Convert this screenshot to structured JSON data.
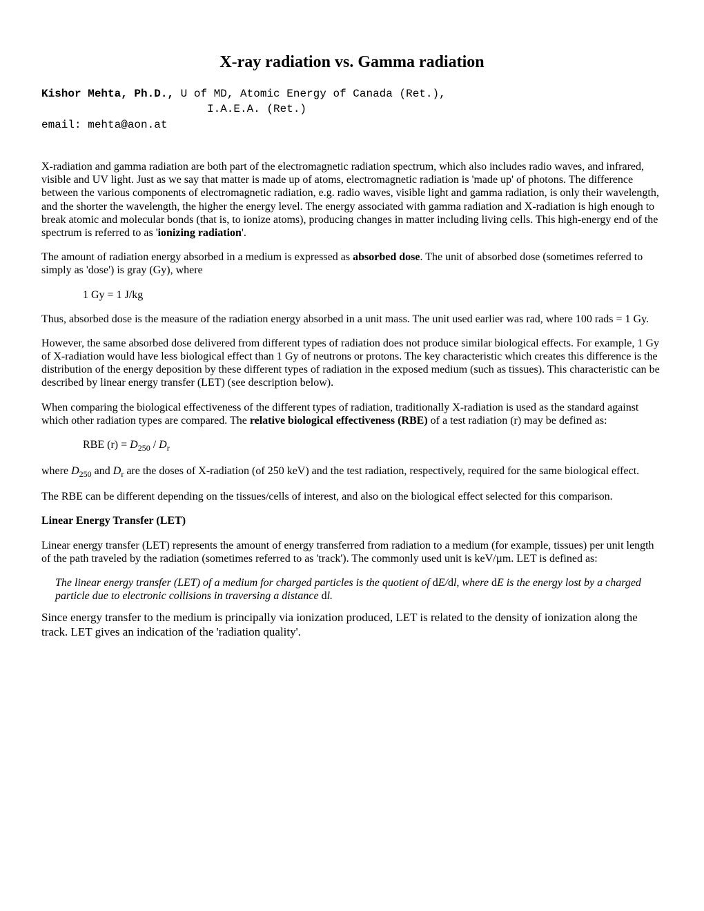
{
  "title": "X-ray radiation vs. Gamma radiation",
  "author": {
    "name": "Kishor Mehta, Ph.D.,",
    "affil1": " U of MD, Atomic Energy of Canada (Ret.),",
    "affil2": "I.A.E.A. (Ret.)",
    "email_label": "email: ",
    "email": "mehta@aon.at"
  },
  "para1_a": "X-radiation and gamma radiation are both part of the electromagnetic radiation spectrum, which also includes radio waves, and infrared, visible and UV light. Just as we say that matter is made up of atoms, electromagnetic radiation is 'made up' of photons. The difference between the various components of electromagnetic radiation, e.g. radio waves, visible light and gamma radiation, is only their wavelength, and the shorter the wavelength, the higher the energy level. The energy associated with gamma radiation and X-radiation is high enough to break atomic and molecular bonds (that is, to ionize atoms), producing changes in matter including living cells. This high-energy end of the spectrum is referred to as '",
  "para1_b": "ionizing radiation",
  "para1_c": "'.",
  "para2_a": "The amount of radiation energy absorbed in a medium is expressed as ",
  "para2_b": "absorbed dose",
  "para2_c": ". The unit of absorbed dose (sometimes referred to simply as 'dose') is gray (Gy), where",
  "eq1": "1 Gy = 1 J/kg",
  "para3": "Thus, absorbed dose is the measure of the radiation energy absorbed in a unit mass. The unit used earlier was rad, where 100 rads = 1 Gy.",
  "para4": "However, the same absorbed dose delivered from different types of radiation does not produce similar biological effects. For example, 1 Gy of X-radiation would have less biological effect than 1 Gy of neutrons or protons. The key characteristic which creates this difference is the distribution of the energy deposition by these different types of radiation in the exposed medium (such as tissues). This characteristic can be described by linear energy transfer (LET) (see description below).",
  "para5_a": "When comparing the biological effectiveness of the different types of radiation, traditionally X-radiation is used as the standard against which other radiation types are compared. The ",
  "para5_b": "relative biological effectiveness (RBE)",
  "para5_c": " of a test radiation (r) may be defined as:",
  "eq2_a": "RBE (r) = ",
  "eq2_b": "D",
  "eq2_sub1": "250",
  "eq2_c": " / ",
  "eq2_d": "D",
  "eq2_sub2": "r",
  "para6_a": "where ",
  "para6_b": "D",
  "para6_sub1": "250",
  "para6_c": " and ",
  "para6_d": "D",
  "para6_sub2": "r",
  "para6_e": " are the doses of X-radiation (of 250 keV) and the test radiation, respectively, required for the same biological effect.",
  "para7": "The RBE can be different depending on the tissues/cells of interest, and also on the biological effect selected for this comparison.",
  "section_let": "Linear Energy Transfer (LET)",
  "para8": "Linear energy transfer (LET) represents the amount of energy transferred from radiation to a medium (for example, tissues) per unit length of the path traveled by the radiation (sometimes referred to as 'track'). The commonly used unit is keV/µm. LET is defined as:",
  "def_a": "The linear energy transfer (LET) of a medium for charged particles is the quotient of ",
  "def_b": "d",
  "def_c": "E/",
  "def_d": "d",
  "def_e": "l, where ",
  "def_f": "d",
  "def_g": "E is the energy lost by a charged particle due to electronic collisions in traversing a distance ",
  "def_h": "d",
  "def_i": "l.",
  "para9": "Since energy transfer to the medium is principally via ionization produced, LET is related to the density of ionization along the track. LET gives an indication of the 'radiation quality'."
}
